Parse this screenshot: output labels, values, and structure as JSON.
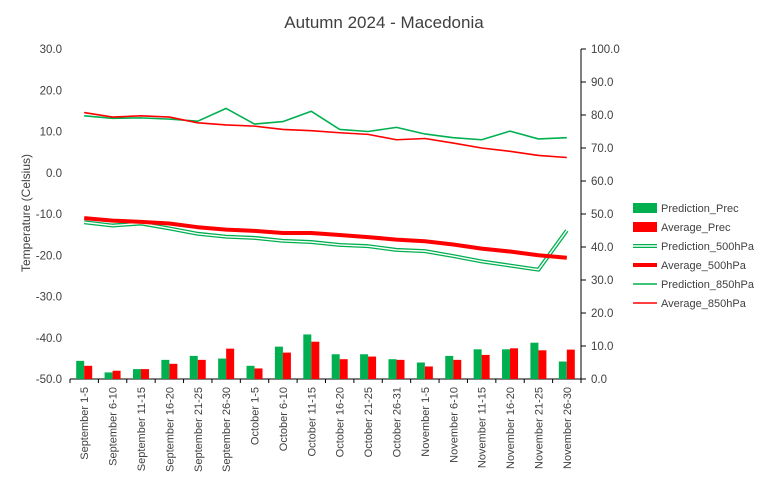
{
  "chart_data": {
    "type": "bar+line",
    "title": "Autumn 2024 - Macedonia",
    "ylabel_left": "Temperature (Celsius)",
    "ylabel_right": "",
    "ylim_left": [
      -50,
      30
    ],
    "ylim_right": [
      0,
      100
    ],
    "yticks_left": [
      "30.0",
      "20.0",
      "10.0",
      "0.0",
      "-10.0",
      "-20.0",
      "-30.0",
      "-40.0",
      "-50.0"
    ],
    "yticks_right": [
      "100.0",
      "90.0",
      "80.0",
      "70.0",
      "60.0",
      "50.0",
      "40.0",
      "30.0",
      "20.0",
      "10.0",
      "0.0"
    ],
    "categories": [
      "September 1-5",
      "September 6-10",
      "September 11-15",
      "September 16-20",
      "September 21-25",
      "September 26-30",
      "October 1-5",
      "October 6-10",
      "October 11-15",
      "October 16-20",
      "October 21-25",
      "October 26-31",
      "November 1-5",
      "November 6-10",
      "November 11-15",
      "November 16-20",
      "November 21-25",
      "November 26-30"
    ],
    "grid": false,
    "legend_position": "right",
    "series": [
      {
        "name": "Prediction_Prec",
        "kind": "bar",
        "axis": "right",
        "color": "#00b050",
        "values": [
          5.5,
          2,
          3,
          5.8,
          7,
          6.2,
          4,
          9.8,
          13.5,
          7.5,
          7.5,
          6,
          5,
          7,
          9,
          9,
          11,
          5.3
        ]
      },
      {
        "name": "Average_Prec",
        "kind": "bar",
        "axis": "right",
        "color": "#ff0000",
        "values": [
          4,
          2.5,
          3,
          4.6,
          5.8,
          9.2,
          3.2,
          8,
          11.3,
          6,
          6.8,
          5.8,
          3.8,
          5.8,
          7.3,
          9.3,
          8.7,
          8.9
        ]
      },
      {
        "name": "Prediction_500hPa",
        "kind": "line-double",
        "axis": "left",
        "color": "#00b050",
        "values": [
          -12,
          -12.8,
          -12.3,
          -13.5,
          -14.8,
          -15.5,
          -15.8,
          -16.5,
          -16.8,
          -17.5,
          -17.8,
          -18.7,
          -19,
          -20.2,
          -21.5,
          -22.5,
          -23.5,
          -14
        ]
      },
      {
        "name": "Average_500hPa",
        "kind": "line-thick",
        "axis": "left",
        "color": "#ff0000",
        "values": [
          -11,
          -11.6,
          -11.9,
          -12.3,
          -13.2,
          -13.8,
          -14.1,
          -14.6,
          -14.6,
          -15.1,
          -15.6,
          -16.2,
          -16.6,
          -17.4,
          -18.4,
          -19.1,
          -20,
          -20.6
        ]
      },
      {
        "name": "Prediction_850hPa",
        "kind": "line",
        "axis": "left",
        "color": "#00b050",
        "values": [
          13.8,
          13.2,
          13.3,
          13,
          12.5,
          15.6,
          11.8,
          12.4,
          14.9,
          10.5,
          10,
          11,
          9.4,
          8.5,
          8,
          10.1,
          8.2,
          8.5
        ]
      },
      {
        "name": "Average_850hPa",
        "kind": "line",
        "axis": "left",
        "color": "#ff0000",
        "values": [
          14.6,
          13.5,
          13.8,
          13.5,
          12.1,
          11.6,
          11.3,
          10.5,
          10.2,
          9.7,
          9.3,
          8,
          8.3,
          7.2,
          6,
          5.2,
          4.2,
          3.7
        ]
      }
    ]
  }
}
